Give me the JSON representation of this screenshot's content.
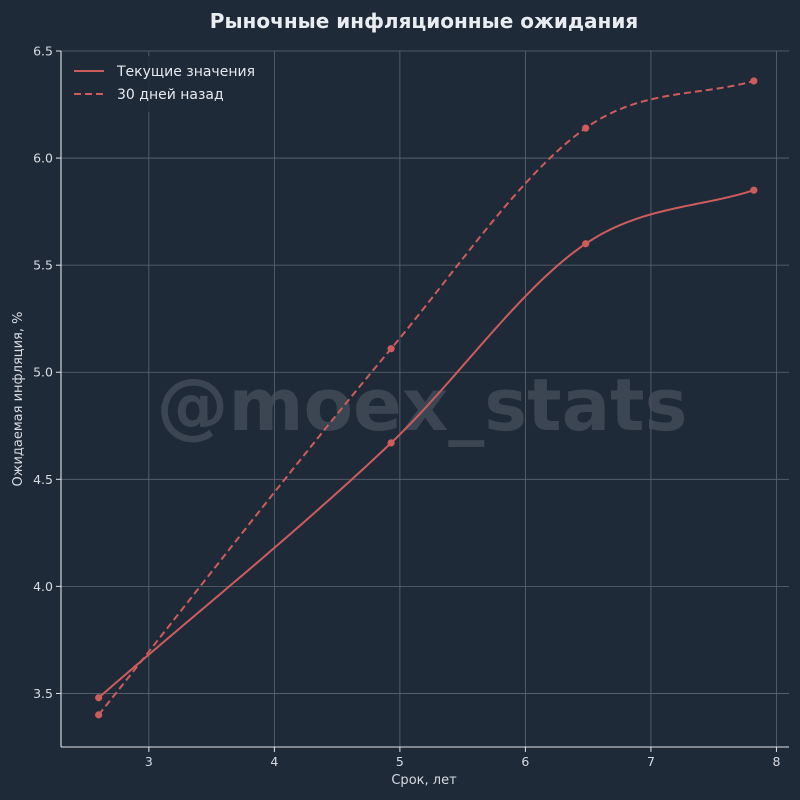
{
  "chart_data": {
    "type": "line",
    "title": "Рыночные инфляционные ожидания",
    "xlabel": "Срок, лет",
    "ylabel": "Ожидаемая инфляция, %",
    "xlim": [
      2.3,
      8.1
    ],
    "ylim": [
      3.25,
      6.5
    ],
    "x_ticks": [
      3,
      4,
      5,
      6,
      7,
      8
    ],
    "y_ticks": [
      3.5,
      4.0,
      4.5,
      5.0,
      5.5,
      6.0,
      6.5
    ],
    "x_tick_labels": [
      "3",
      "4",
      "5",
      "6",
      "7",
      "8"
    ],
    "y_tick_labels": [
      "3.5",
      "4.0",
      "4.5",
      "5.0",
      "5.5",
      "6.0",
      "6.5"
    ],
    "grid": true,
    "legend_position": "top-left",
    "watermark": "@moex_stats",
    "series": [
      {
        "name": "Текущие значения",
        "style": "solid",
        "color": "#cd5c5c",
        "x": [
          2.6,
          4.93,
          6.48,
          7.82
        ],
        "y": [
          3.48,
          4.67,
          5.6,
          5.85
        ]
      },
      {
        "name": "30 дней назад",
        "style": "dashed",
        "color": "#cd5c5c",
        "x": [
          2.6,
          4.93,
          6.48,
          7.82
        ],
        "y": [
          3.4,
          5.11,
          6.14,
          6.36
        ]
      }
    ]
  },
  "colors": {
    "background": "#1f2a38",
    "grid": "#5d6673",
    "axis": "#dfe3e8",
    "text": "#d6dbe2"
  }
}
